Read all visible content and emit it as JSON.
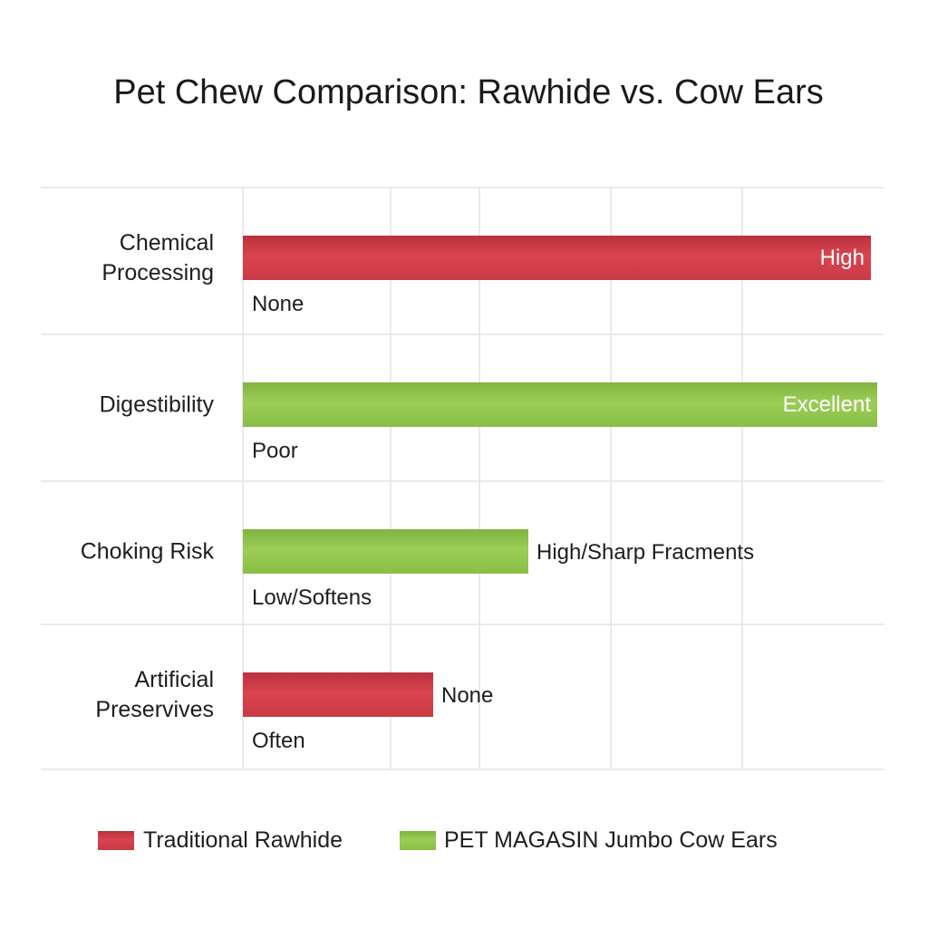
{
  "chart_data": {
    "type": "bar",
    "orientation": "horizontal",
    "title": "Pet Chew Comparison: Rawhide vs. Cow Ears",
    "xlabel": "",
    "ylabel": "",
    "xlim": [
      0,
      100
    ],
    "grid": true,
    "legend_position": "bottom",
    "series": [
      {
        "name": "Traditional Rawhide",
        "color": "#cc3b46"
      },
      {
        "name": "PET MAGASIN Jumbo Cow Ears",
        "color": "#8cc34a"
      }
    ],
    "categories": [
      {
        "label_lines": [
          "Chemical",
          "Processing"
        ],
        "bar": {
          "series": 0,
          "value": 99,
          "label": "High",
          "label_position": "inside"
        },
        "secondary_label": "None"
      },
      {
        "label_lines": [
          "Digestibility"
        ],
        "bar": {
          "series": 1,
          "value": 100,
          "label": "Excellent",
          "label_position": "inside"
        },
        "secondary_label": "Poor"
      },
      {
        "label_lines": [
          "Choking Risk"
        ],
        "bar": {
          "series": 1,
          "value": 45,
          "label": "High/Sharp Fracments",
          "label_position": "outside"
        },
        "secondary_label": "Low/Softens"
      },
      {
        "label_lines": [
          "Artificial",
          "Preservives"
        ],
        "bar": {
          "series": 0,
          "value": 30,
          "label": "None",
          "label_position": "outside"
        },
        "secondary_label": "Often"
      }
    ]
  }
}
